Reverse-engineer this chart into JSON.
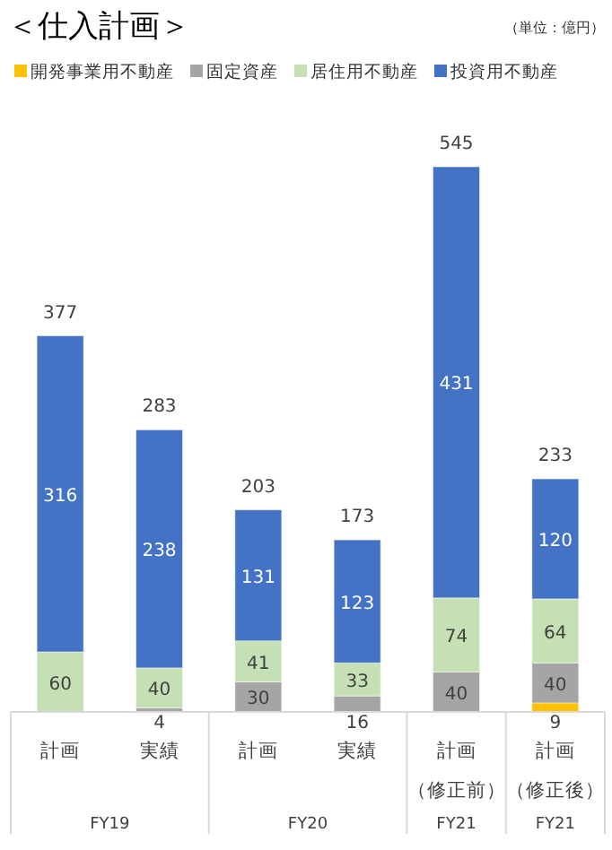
{
  "chart_data": {
    "type": "bar",
    "stacked": true,
    "title": "＜仕入計画＞",
    "annotations": [
      "（単位：億円）",
      "FY19",
      "FY20",
      "FY21",
      "FY21"
    ],
    "categories": [
      "計画",
      "実績",
      "計画",
      "実績",
      "計画（修正前）",
      "計画（修正後）"
    ],
    "legend": "top left",
    "data_labels": true,
    "series": [
      {
        "name": "開発事業用不動産",
        "color": "#ffc000",
        "values": [
          null,
          null,
          null,
          null,
          null,
          9
        ]
      },
      {
        "name": "固定資産",
        "color": "#a5a5a5",
        "values": [
          null,
          4,
          30,
          16,
          40,
          40
        ]
      },
      {
        "name": "居住用不動産",
        "color": "#c5e0b4",
        "values": [
          60,
          40,
          41,
          33,
          74,
          64
        ]
      },
      {
        "name": "投資用不動産",
        "color": "#4472c4",
        "values": [
          316,
          238,
          131,
          123,
          431,
          120
        ]
      }
    ],
    "totals": [
      "377",
      "283",
      "203",
      "173",
      "545",
      "233"
    ]
  }
}
